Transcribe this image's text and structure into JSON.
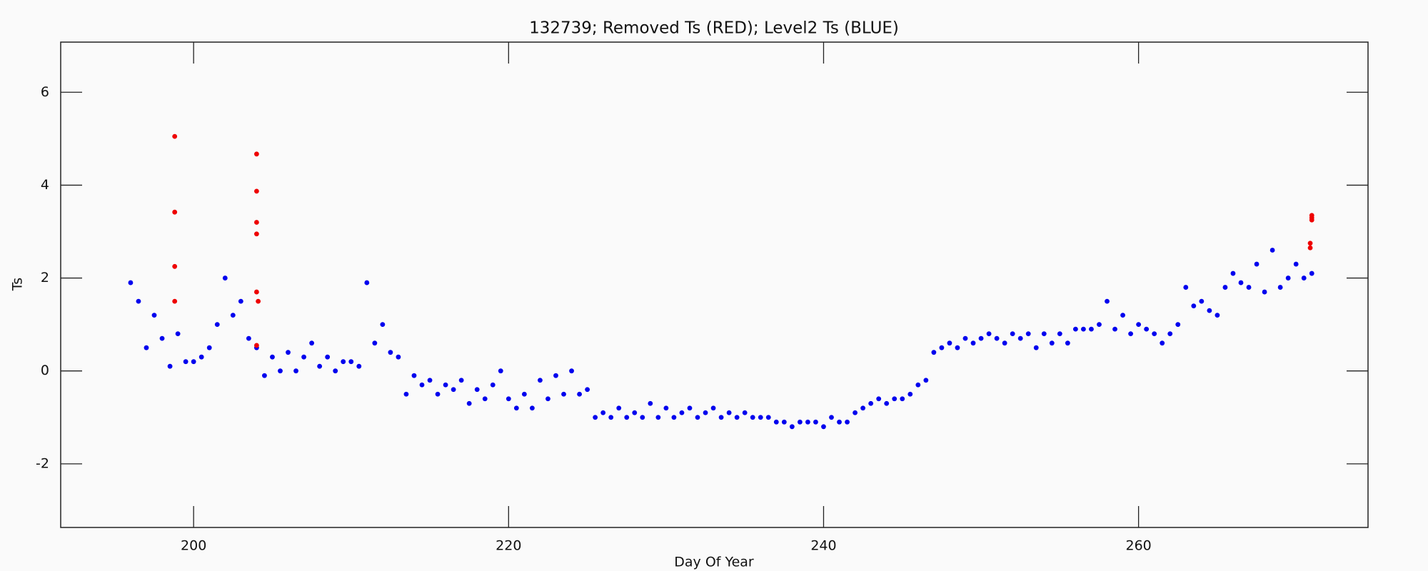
{
  "chart_data": {
    "type": "scatter",
    "title": "132739; Removed Ts (RED); Level2 Ts (BLUE)",
    "xlabel": "Day Of Year",
    "ylabel": "Ts",
    "xlim": [
      191.56,
      274.57
    ],
    "ylim": [
      -3.37,
      7.08
    ],
    "xticks": [
      200,
      220,
      240,
      260
    ],
    "yticks": [
      -2,
      0,
      2,
      4,
      6
    ],
    "series": [
      {
        "color": "#0000ee",
        "x": [
          196,
          196.5,
          197,
          197.5,
          198,
          198.5,
          199,
          199.5,
          200,
          200.5,
          201,
          201.5,
          202,
          202.5,
          203,
          203.5,
          204,
          204.5,
          205,
          205.5,
          206,
          206.5,
          207,
          207.5,
          208,
          208.5,
          209,
          209.5,
          210,
          210.5,
          211,
          211.5,
          212,
          212.5,
          213,
          213.5,
          214,
          214.5,
          215,
          215.5,
          216,
          216.5,
          217,
          217.5,
          218,
          218.5,
          219,
          219.5,
          220,
          220.5,
          221,
          221.5,
          222,
          222.5,
          223,
          223.5,
          224,
          224.5,
          225,
          225.5,
          226,
          226.5,
          227,
          227.5,
          228,
          228.5,
          229,
          229.5,
          230,
          230.5,
          231,
          231.5,
          232,
          232.5,
          233,
          233.5,
          234,
          234.5,
          235,
          235.5,
          236,
          236.5,
          237,
          237.5,
          238,
          238.5,
          239,
          239.5,
          240,
          240.5,
          241,
          241.5,
          242,
          242.5,
          243,
          243.5,
          244,
          244.5,
          245,
          245.5,
          246,
          246.5,
          247,
          247.5,
          248,
          248.5,
          249,
          249.5,
          250,
          250.5,
          251,
          251.5,
          252,
          252.5,
          253,
          253.5,
          254,
          254.5,
          255,
          255.5,
          256,
          256.5,
          257,
          257.5,
          258,
          258.5,
          259,
          259.5,
          260,
          260.5,
          261,
          261.5,
          262,
          262.5,
          263,
          263.5,
          264,
          264.5,
          265,
          265.5,
          266,
          266.5,
          267,
          267.5,
          268,
          268.5,
          269,
          269.5,
          270,
          270.5,
          271
        ],
        "values": [
          1.9,
          1.5,
          0.5,
          1.2,
          0.7,
          0.1,
          0.8,
          0.2,
          0.2,
          0.3,
          0.5,
          1.0,
          2.0,
          1.2,
          1.5,
          0.7,
          0.5,
          -0.1,
          0.3,
          0.0,
          0.4,
          0.0,
          0.3,
          0.6,
          0.1,
          0.3,
          0.0,
          0.2,
          0.2,
          0.1,
          1.9,
          0.6,
          1.0,
          0.4,
          0.3,
          -0.5,
          -0.1,
          -0.3,
          -0.2,
          -0.5,
          -0.3,
          -0.4,
          -0.2,
          -0.7,
          -0.4,
          -0.6,
          -0.3,
          0.0,
          -0.6,
          -0.8,
          -0.5,
          -0.8,
          -0.2,
          -0.6,
          -0.1,
          -0.5,
          0.0,
          -0.5,
          -0.4,
          -1.0,
          -0.9,
          -1.0,
          -0.8,
          -1.0,
          -0.9,
          -1.0,
          -0.7,
          -1.0,
          -0.8,
          -1.0,
          -0.9,
          -0.8,
          -1.0,
          -0.9,
          -0.8,
          -1.0,
          -0.9,
          -1.0,
          -0.9,
          -1.0,
          -1.0,
          -1.0,
          -1.1,
          -1.1,
          -1.2,
          -1.1,
          -1.1,
          -1.1,
          -1.2,
          -1.0,
          -1.1,
          -1.1,
          -0.9,
          -0.8,
          -0.7,
          -0.6,
          -0.7,
          -0.6,
          -0.6,
          -0.5,
          -0.3,
          -0.2,
          0.4,
          0.5,
          0.6,
          0.5,
          0.7,
          0.6,
          0.7,
          0.8,
          0.7,
          0.6,
          0.8,
          0.7,
          0.8,
          0.5,
          0.8,
          0.6,
          0.8,
          0.6,
          0.9,
          0.9,
          0.9,
          1.0,
          1.5,
          0.9,
          1.2,
          0.8,
          1.0,
          0.9,
          0.8,
          0.6,
          0.8,
          1.0,
          1.8,
          1.4,
          1.5,
          1.3,
          1.2,
          1.8,
          2.1,
          1.9,
          1.8,
          2.3,
          1.7,
          2.6,
          1.8,
          2.0,
          2.3,
          2.0,
          2.1
        ]
      },
      {
        "color": "#ee0000",
        "x": [
          198.8,
          198.8,
          198.8,
          198.8,
          204,
          204,
          204,
          204,
          204,
          204.1,
          204,
          271,
          271,
          271,
          270.9,
          270.9
        ],
        "values": [
          5.05,
          3.42,
          2.25,
          1.5,
          4.67,
          3.87,
          3.2,
          2.95,
          1.7,
          1.5,
          0.55,
          3.35,
          3.3,
          3.25,
          2.75,
          2.65
        ]
      }
    ]
  }
}
